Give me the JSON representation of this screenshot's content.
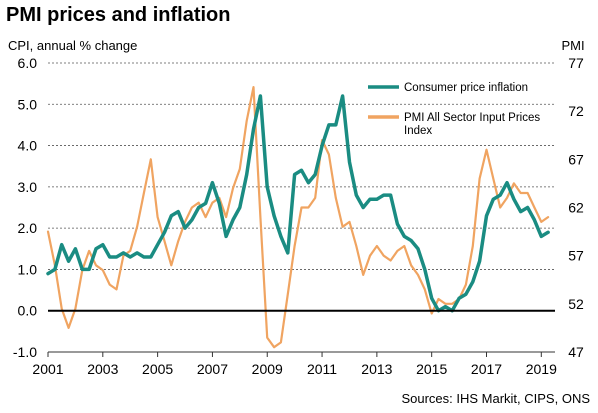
{
  "chart_data": {
    "type": "line",
    "title": "PMI prices and inflation",
    "source": "Sources: IHS Markit, CIPS, ONS",
    "y_left": {
      "label": "CPI, annual % change",
      "range": [
        -1.0,
        6.0
      ],
      "ticks": [
        "6.0",
        "5.0",
        "4.0",
        "3.0",
        "2.0",
        "1.0",
        "0.0",
        "-1.0"
      ],
      "tick_values": [
        6,
        5,
        4,
        3,
        2,
        1,
        0,
        -1
      ]
    },
    "y_right": {
      "label": "PMI",
      "range": [
        47,
        77
      ],
      "ticks": [
        "77",
        "72",
        "67",
        "62",
        "57",
        "52",
        "47"
      ],
      "tick_values": [
        77,
        72,
        67,
        62,
        57,
        52,
        47
      ]
    },
    "x_axis": {
      "range": [
        2001,
        2019.5
      ],
      "ticks": [
        "2001",
        "2003",
        "2005",
        "2007",
        "2009",
        "2011",
        "2013",
        "2015",
        "2017",
        "2019"
      ],
      "tick_values": [
        2001,
        2003,
        2005,
        2007,
        2009,
        2011,
        2013,
        2015,
        2017,
        2019
      ]
    },
    "grid": "horizontal dashed",
    "legend_position": "top-right",
    "series": [
      {
        "name": "Consumer price inflation",
        "axis": "left",
        "color": "#1a8c82",
        "points": [
          [
            2001.0,
            0.9
          ],
          [
            2001.25,
            1.0
          ],
          [
            2001.5,
            1.6
          ],
          [
            2001.75,
            1.2
          ],
          [
            2002.0,
            1.5
          ],
          [
            2002.25,
            1.0
          ],
          [
            2002.5,
            1.0
          ],
          [
            2002.75,
            1.5
          ],
          [
            2003.0,
            1.6
          ],
          [
            2003.25,
            1.3
          ],
          [
            2003.5,
            1.3
          ],
          [
            2003.75,
            1.4
          ],
          [
            2004.0,
            1.3
          ],
          [
            2004.25,
            1.4
          ],
          [
            2004.5,
            1.3
          ],
          [
            2004.75,
            1.3
          ],
          [
            2005.0,
            1.6
          ],
          [
            2005.25,
            1.9
          ],
          [
            2005.5,
            2.3
          ],
          [
            2005.75,
            2.4
          ],
          [
            2006.0,
            2.0
          ],
          [
            2006.25,
            2.2
          ],
          [
            2006.5,
            2.5
          ],
          [
            2006.75,
            2.6
          ],
          [
            2007.0,
            3.1
          ],
          [
            2007.25,
            2.6
          ],
          [
            2007.5,
            1.8
          ],
          [
            2007.75,
            2.2
          ],
          [
            2008.0,
            2.5
          ],
          [
            2008.25,
            3.3
          ],
          [
            2008.5,
            4.4
          ],
          [
            2008.75,
            5.2
          ],
          [
            2009.0,
            3.0
          ],
          [
            2009.25,
            2.3
          ],
          [
            2009.5,
            1.8
          ],
          [
            2009.75,
            1.4
          ],
          [
            2010.0,
            3.3
          ],
          [
            2010.25,
            3.4
          ],
          [
            2010.5,
            3.1
          ],
          [
            2010.75,
            3.3
          ],
          [
            2011.0,
            4.0
          ],
          [
            2011.25,
            4.5
          ],
          [
            2011.5,
            4.5
          ],
          [
            2011.75,
            5.2
          ],
          [
            2012.0,
            3.6
          ],
          [
            2012.25,
            2.8
          ],
          [
            2012.5,
            2.5
          ],
          [
            2012.75,
            2.7
          ],
          [
            2013.0,
            2.7
          ],
          [
            2013.25,
            2.8
          ],
          [
            2013.5,
            2.8
          ],
          [
            2013.75,
            2.1
          ],
          [
            2014.0,
            1.8
          ],
          [
            2014.25,
            1.7
          ],
          [
            2014.5,
            1.5
          ],
          [
            2014.75,
            1.0
          ],
          [
            2015.0,
            0.3
          ],
          [
            2015.25,
            0.0
          ],
          [
            2015.5,
            0.1
          ],
          [
            2015.75,
            0.0
          ],
          [
            2016.0,
            0.3
          ],
          [
            2016.25,
            0.4
          ],
          [
            2016.5,
            0.7
          ],
          [
            2016.75,
            1.2
          ],
          [
            2017.0,
            2.3
          ],
          [
            2017.25,
            2.7
          ],
          [
            2017.5,
            2.8
          ],
          [
            2017.75,
            3.1
          ],
          [
            2018.0,
            2.7
          ],
          [
            2018.25,
            2.4
          ],
          [
            2018.5,
            2.5
          ],
          [
            2018.75,
            2.2
          ],
          [
            2019.0,
            1.8
          ],
          [
            2019.25,
            1.9
          ]
        ]
      },
      {
        "name": "PMI All Sector Input Prices Index",
        "axis": "right",
        "color": "#f0a461",
        "points": [
          [
            2001.0,
            59.5
          ],
          [
            2001.25,
            56.0
          ],
          [
            2001.5,
            51.5
          ],
          [
            2001.75,
            49.5
          ],
          [
            2002.0,
            51.5
          ],
          [
            2002.25,
            55.5
          ],
          [
            2002.5,
            57.5
          ],
          [
            2002.75,
            56.0
          ],
          [
            2003.0,
            55.5
          ],
          [
            2003.25,
            54.0
          ],
          [
            2003.5,
            53.5
          ],
          [
            2003.75,
            57.0
          ],
          [
            2004.0,
            57.5
          ],
          [
            2004.25,
            60.0
          ],
          [
            2004.5,
            63.5
          ],
          [
            2004.75,
            67.0
          ],
          [
            2005.0,
            61.0
          ],
          [
            2005.25,
            58.5
          ],
          [
            2005.5,
            56.0
          ],
          [
            2005.75,
            58.5
          ],
          [
            2006.0,
            60.5
          ],
          [
            2006.25,
            62.0
          ],
          [
            2006.5,
            62.5
          ],
          [
            2006.75,
            61.0
          ],
          [
            2007.0,
            62.5
          ],
          [
            2007.25,
            63.0
          ],
          [
            2007.5,
            61.0
          ],
          [
            2007.75,
            64.0
          ],
          [
            2008.0,
            66.0
          ],
          [
            2008.25,
            71.0
          ],
          [
            2008.5,
            74.5
          ],
          [
            2008.75,
            61.0
          ],
          [
            2009.0,
            48.5
          ],
          [
            2009.25,
            47.5
          ],
          [
            2009.5,
            48.0
          ],
          [
            2009.75,
            53.0
          ],
          [
            2010.0,
            58.0
          ],
          [
            2010.25,
            62.0
          ],
          [
            2010.5,
            62.0
          ],
          [
            2010.75,
            63.0
          ],
          [
            2011.0,
            69.0
          ],
          [
            2011.25,
            67.5
          ],
          [
            2011.5,
            63.0
          ],
          [
            2011.75,
            60.0
          ],
          [
            2012.0,
            60.5
          ],
          [
            2012.25,
            58.0
          ],
          [
            2012.5,
            55.0
          ],
          [
            2012.75,
            57.0
          ],
          [
            2013.0,
            58.0
          ],
          [
            2013.25,
            57.0
          ],
          [
            2013.5,
            56.5
          ],
          [
            2013.75,
            57.5
          ],
          [
            2014.0,
            58.0
          ],
          [
            2014.25,
            56.0
          ],
          [
            2014.5,
            55.0
          ],
          [
            2014.75,
            53.5
          ],
          [
            2015.0,
            51.0
          ],
          [
            2015.25,
            52.5
          ],
          [
            2015.5,
            52.0
          ],
          [
            2015.75,
            52.0
          ],
          [
            2016.0,
            52.5
          ],
          [
            2016.25,
            54.0
          ],
          [
            2016.5,
            58.0
          ],
          [
            2016.75,
            65.0
          ],
          [
            2017.0,
            68.0
          ],
          [
            2017.25,
            65.0
          ],
          [
            2017.5,
            62.0
          ],
          [
            2017.75,
            63.0
          ],
          [
            2018.0,
            64.5
          ],
          [
            2018.25,
            63.5
          ],
          [
            2018.5,
            63.5
          ],
          [
            2018.75,
            62.0
          ],
          [
            2019.0,
            60.5
          ],
          [
            2019.25,
            61.0
          ]
        ]
      }
    ],
    "reference_line": {
      "axis": "left",
      "value": 0.0
    }
  }
}
